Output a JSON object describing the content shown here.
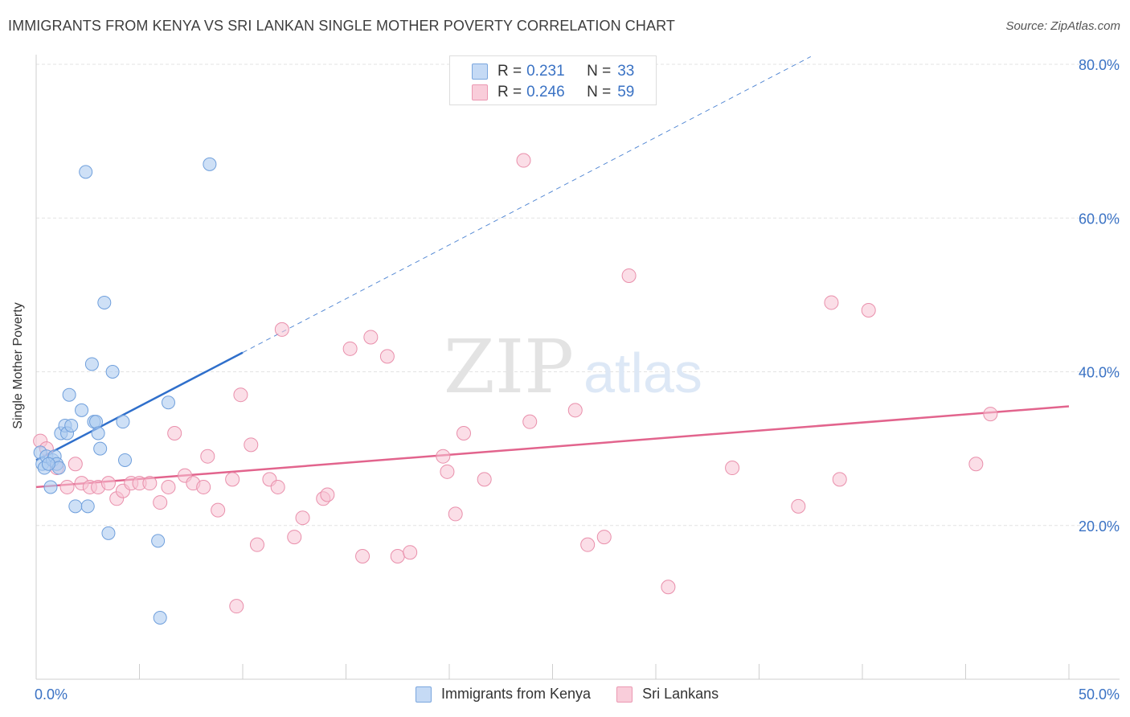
{
  "title": "IMMIGRANTS FROM KENYA VS SRI LANKAN SINGLE MOTHER POVERTY CORRELATION CHART",
  "source": "Source: ZipAtlas.com",
  "watermark": {
    "zip": "ZIP",
    "atlas": "atlas"
  },
  "legend": [
    {
      "r_label": "R =",
      "r_value": "0.231",
      "n_label": "N =",
      "n_value": "33"
    },
    {
      "r_label": "R =",
      "r_value": "0.246",
      "n_label": "N =",
      "n_value": "59"
    }
  ],
  "colors": {
    "kenya_fill": "#aecbf0",
    "kenya_stroke": "#6f9fdc",
    "kenya_line": "#2f6fcb",
    "srilanka_fill": "#f8c3d3",
    "srilanka_stroke": "#e98fab",
    "srilanka_line": "#e2648d",
    "axis_text": "#3a72c4",
    "grid": "#e3e3e3"
  },
  "chart_data": {
    "type": "scatter",
    "ylabel": "Single Mother Poverty",
    "xlim": [
      0,
      50
    ],
    "ylim": [
      0,
      80
    ],
    "x_tick_labels": [
      "0.0%",
      "50.0%"
    ],
    "y_ticks": [
      20,
      40,
      60,
      80
    ],
    "y_tick_labels": [
      "20.0%",
      "40.0%",
      "60.0%",
      "80.0%"
    ],
    "grid": true,
    "series": [
      {
        "name": "Immigrants from Kenya",
        "points": [
          [
            0.2,
            29.5
          ],
          [
            0.3,
            28.0
          ],
          [
            0.4,
            27.5
          ],
          [
            0.5,
            29.0
          ],
          [
            0.7,
            25.0
          ],
          [
            0.8,
            28.5
          ],
          [
            0.9,
            29.0
          ],
          [
            1.0,
            28.0
          ],
          [
            1.1,
            27.5
          ],
          [
            1.2,
            32.0
          ],
          [
            1.4,
            33.0
          ],
          [
            1.5,
            32.0
          ],
          [
            1.6,
            37.0
          ],
          [
            1.7,
            33.0
          ],
          [
            1.9,
            22.5
          ],
          [
            2.2,
            35.0
          ],
          [
            2.4,
            66.0
          ],
          [
            2.5,
            22.5
          ],
          [
            2.7,
            41.0
          ],
          [
            2.8,
            33.5
          ],
          [
            2.9,
            33.5
          ],
          [
            3.0,
            32.0
          ],
          [
            3.1,
            30.0
          ],
          [
            3.3,
            49.0
          ],
          [
            3.5,
            19.0
          ],
          [
            3.7,
            40.0
          ],
          [
            4.2,
            33.5
          ],
          [
            4.3,
            28.5
          ],
          [
            5.9,
            18.0
          ],
          [
            6.0,
            8.0
          ],
          [
            6.4,
            36.0
          ],
          [
            8.4,
            67.0
          ],
          [
            0.6,
            28.0
          ]
        ],
        "trend": {
          "x": [
            0,
            10
          ],
          "y": [
            28.5,
            42.5
          ],
          "dashed_extension_to_x": 37.5
        }
      },
      {
        "name": "Sri Lankans",
        "points": [
          [
            0.2,
            31.0
          ],
          [
            0.5,
            30.0
          ],
          [
            1.0,
            27.5
          ],
          [
            1.5,
            25.0
          ],
          [
            1.9,
            28.0
          ],
          [
            2.2,
            25.5
          ],
          [
            2.6,
            25.0
          ],
          [
            3.0,
            25.0
          ],
          [
            3.5,
            25.5
          ],
          [
            3.9,
            23.5
          ],
          [
            4.2,
            24.5
          ],
          [
            4.6,
            25.5
          ],
          [
            5.0,
            25.5
          ],
          [
            5.5,
            25.5
          ],
          [
            6.0,
            23.0
          ],
          [
            6.4,
            25.0
          ],
          [
            6.7,
            32.0
          ],
          [
            7.2,
            26.5
          ],
          [
            7.6,
            25.5
          ],
          [
            8.1,
            25.0
          ],
          [
            8.3,
            29.0
          ],
          [
            8.8,
            22.0
          ],
          [
            9.5,
            26.0
          ],
          [
            9.7,
            9.5
          ],
          [
            9.9,
            37.0
          ],
          [
            10.4,
            30.5
          ],
          [
            10.7,
            17.5
          ],
          [
            11.3,
            26.0
          ],
          [
            11.7,
            25.0
          ],
          [
            11.9,
            45.5
          ],
          [
            12.5,
            18.5
          ],
          [
            12.9,
            21.0
          ],
          [
            13.9,
            23.5
          ],
          [
            14.1,
            24.0
          ],
          [
            15.2,
            43.0
          ],
          [
            15.8,
            16.0
          ],
          [
            16.2,
            44.5
          ],
          [
            17.0,
            42.0
          ],
          [
            17.5,
            16.0
          ],
          [
            18.1,
            16.5
          ],
          [
            19.7,
            29.0
          ],
          [
            19.9,
            27.0
          ],
          [
            20.3,
            21.5
          ],
          [
            20.7,
            32.0
          ],
          [
            21.7,
            26.0
          ],
          [
            23.6,
            67.5
          ],
          [
            23.9,
            33.5
          ],
          [
            26.1,
            35.0
          ],
          [
            26.7,
            17.5
          ],
          [
            27.5,
            18.5
          ],
          [
            28.7,
            52.5
          ],
          [
            30.6,
            12.0
          ],
          [
            33.7,
            27.5
          ],
          [
            36.9,
            22.5
          ],
          [
            38.5,
            49.0
          ],
          [
            38.9,
            26.0
          ],
          [
            40.3,
            48.0
          ],
          [
            45.5,
            28.0
          ],
          [
            46.2,
            34.5
          ]
        ],
        "trend": {
          "x": [
            0,
            50
          ],
          "y": [
            25.0,
            35.5
          ]
        }
      }
    ]
  }
}
